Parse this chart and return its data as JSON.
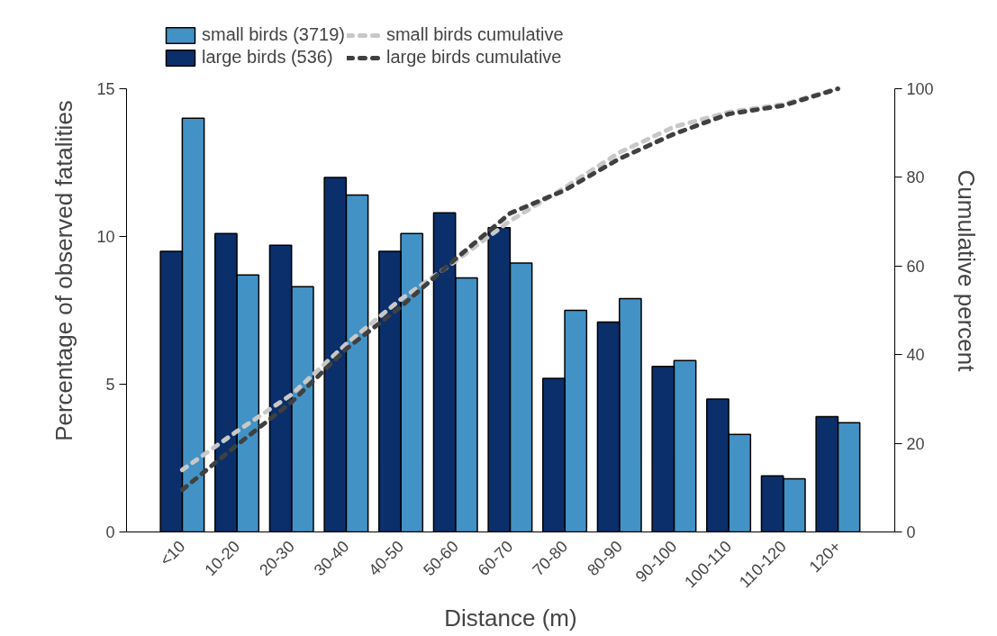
{
  "chart_data": {
    "type": "bar",
    "xlabel": "Distance (m)",
    "ylabel": "Percentage of observed fatalities",
    "y2label": "Cumulative percent",
    "categories": [
      "<10",
      "10-20",
      "20-30",
      "30-40",
      "40-50",
      "50-60",
      "60-70",
      "70-80",
      "80-90",
      "90-100",
      "100-110",
      "110-120",
      "120+"
    ],
    "series": [
      {
        "name": "small birds (3719)",
        "color": "#4292c6",
        "values": [
          14.0,
          8.7,
          8.3,
          11.4,
          10.1,
          8.6,
          9.1,
          7.5,
          7.9,
          5.8,
          3.3,
          1.8,
          3.7
        ]
      },
      {
        "name": "large birds (536)",
        "color": "#0a2f6b",
        "values": [
          9.5,
          10.1,
          9.7,
          12.0,
          9.5,
          10.8,
          10.3,
          5.2,
          7.1,
          5.6,
          4.5,
          1.9,
          3.9
        ]
      },
      {
        "name": "small birds cumulative",
        "type": "line",
        "axis": "y2",
        "color": "#c8c8c8",
        "line_style": "dashed",
        "values": [
          14.0,
          22.7,
          31.0,
          42.4,
          52.5,
          61.1,
          70.2,
          77.7,
          85.6,
          91.4,
          94.7,
          96.5,
          100
        ]
      },
      {
        "name": "large birds cumulative",
        "type": "line",
        "axis": "y2",
        "color": "#404040",
        "line_style": "dashed",
        "values": [
          9.5,
          19.6,
          29.3,
          41.3,
          50.8,
          61.6,
          71.9,
          77.1,
          84.2,
          89.8,
          94.3,
          96.2,
          100
        ]
      }
    ],
    "ylim": [
      0,
      15
    ],
    "yticks": [
      0,
      5,
      10,
      15
    ],
    "y2lim": [
      0,
      100
    ],
    "y2ticks": [
      0,
      20,
      40,
      60,
      80,
      100
    ],
    "legend": "top",
    "grid": false
  }
}
